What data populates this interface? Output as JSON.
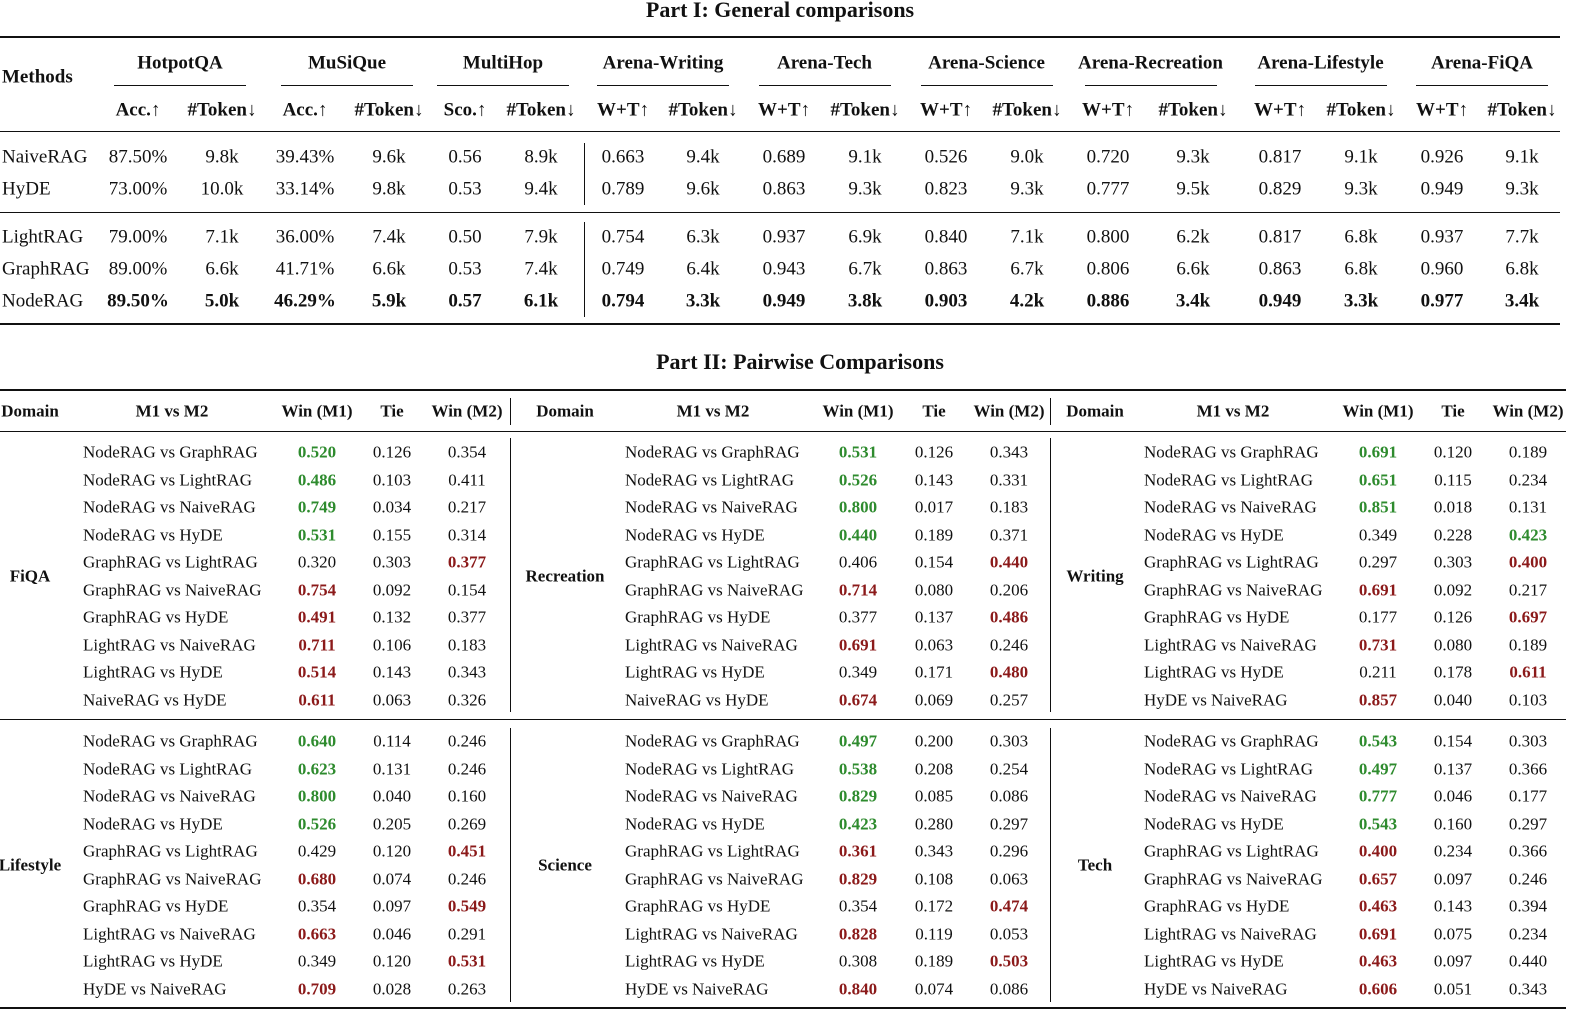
{
  "part1": {
    "title": "Part I: General comparisons",
    "methods_header": "Methods",
    "groups": [
      "HotpotQA",
      "MuSiQue",
      "MultiHop",
      "Arena-Writing",
      "Arena-Tech",
      "Arena-Science",
      "Arena-Recreation",
      "Arena-Lifestyle",
      "Arena-FiQA"
    ],
    "subheaders": [
      "Acc.↑",
      "#Token↓",
      "Acc.↑",
      "#Token↓",
      "Sco.↑",
      "#Token↓",
      "W+T↑",
      "#Token↓",
      "W+T↑",
      "#Token↓",
      "W+T↑",
      "#Token↓",
      "W+T↑",
      "#Token↓",
      "W+T↑",
      "#Token↓",
      "W+T↑",
      "#Token↓"
    ],
    "row_groups": [
      [
        {
          "method": "NaiveRAG",
          "values": [
            "87.50%",
            "9.8k",
            "39.43%",
            "9.6k",
            "0.56",
            "8.9k",
            "0.663",
            "9.4k",
            "0.689",
            "9.1k",
            "0.526",
            "9.0k",
            "0.720",
            "9.3k",
            "0.817",
            "9.1k",
            "0.926",
            "9.1k"
          ]
        },
        {
          "method": "HyDE",
          "values": [
            "73.00%",
            "10.0k",
            "33.14%",
            "9.8k",
            "0.53",
            "9.4k",
            "0.789",
            "9.6k",
            "0.863",
            "9.3k",
            "0.823",
            "9.3k",
            "0.777",
            "9.5k",
            "0.829",
            "9.3k",
            "0.949",
            "9.3k"
          ]
        }
      ],
      [
        {
          "method": "LightRAG",
          "values": [
            "79.00%",
            "7.1k",
            "36.00%",
            "7.4k",
            "0.50",
            "7.9k",
            "0.754",
            "6.3k",
            "0.937",
            "6.9k",
            "0.840",
            "7.1k",
            "0.800",
            "6.2k",
            "0.817",
            "6.8k",
            "0.937",
            "7.7k"
          ]
        },
        {
          "method": "GraphRAG",
          "values": [
            "89.00%",
            "6.6k",
            "41.71%",
            "6.6k",
            "0.53",
            "7.4k",
            "0.749",
            "6.4k",
            "0.943",
            "6.7k",
            "0.863",
            "6.7k",
            "0.806",
            "6.6k",
            "0.863",
            "6.8k",
            "0.960",
            "6.8k"
          ]
        },
        {
          "method": "NodeRAG",
          "values": [
            "89.50%",
            "5.0k",
            "46.29%",
            "5.9k",
            "0.57",
            "6.1k",
            "0.794",
            "3.3k",
            "0.949",
            "3.8k",
            "0.903",
            "4.2k",
            "0.886",
            "3.4k",
            "0.949",
            "3.3k",
            "0.977",
            "3.4k"
          ],
          "bold": true
        }
      ]
    ]
  },
  "part2": {
    "title": "Part II: Pairwise Comparisons",
    "headers": [
      "Domain",
      "M1 vs M2",
      "Win (M1)",
      "Tie",
      "Win (M2)"
    ],
    "sections": [
      [
        {
          "domain": "FiQA",
          "rows": [
            {
              "pair": "NodeRAG vs GraphRAG",
              "cells": [
                "0.520",
                "0.126",
                "0.354"
              ],
              "bold": 0,
              "color": "#2e8b2e"
            },
            {
              "pair": "NodeRAG vs LightRAG",
              "cells": [
                "0.486",
                "0.103",
                "0.411"
              ],
              "bold": 0,
              "color": "#2e8b2e"
            },
            {
              "pair": "NodeRAG vs NaiveRAG",
              "cells": [
                "0.749",
                "0.034",
                "0.217"
              ],
              "bold": 0,
              "color": "#2e8b2e"
            },
            {
              "pair": "NodeRAG vs HyDE",
              "cells": [
                "0.531",
                "0.155",
                "0.314"
              ],
              "bold": 0,
              "color": "#2e8b2e"
            },
            {
              "pair": "GraphRAG vs LightRAG",
              "cells": [
                "0.320",
                "0.303",
                "0.377"
              ],
              "bold": 2,
              "color": "#8b1a1a"
            },
            {
              "pair": "GraphRAG vs NaiveRAG",
              "cells": [
                "0.754",
                "0.092",
                "0.154"
              ],
              "bold": 0,
              "color": "#8b1a1a"
            },
            {
              "pair": "GraphRAG vs HyDE",
              "cells": [
                "0.491",
                "0.132",
                "0.377"
              ],
              "bold": 0,
              "color": "#8b1a1a"
            },
            {
              "pair": "LightRAG vs NaiveRAG",
              "cells": [
                "0.711",
                "0.106",
                "0.183"
              ],
              "bold": 0,
              "color": "#8b1a1a"
            },
            {
              "pair": "LightRAG vs HyDE",
              "cells": [
                "0.514",
                "0.143",
                "0.343"
              ],
              "bold": 0,
              "color": "#8b1a1a"
            },
            {
              "pair": "NaiveRAG vs HyDE",
              "cells": [
                "0.611",
                "0.063",
                "0.326"
              ],
              "bold": 0,
              "color": "#8b1a1a"
            }
          ]
        },
        {
          "domain": "Recreation",
          "rows": [
            {
              "pair": "NodeRAG vs GraphRAG",
              "cells": [
                "0.531",
                "0.126",
                "0.343"
              ],
              "bold": 0,
              "color": "#2e8b2e"
            },
            {
              "pair": "NodeRAG vs LightRAG",
              "cells": [
                "0.526",
                "0.143",
                "0.331"
              ],
              "bold": 0,
              "color": "#2e8b2e"
            },
            {
              "pair": "NodeRAG vs NaiveRAG",
              "cells": [
                "0.800",
                "0.017",
                "0.183"
              ],
              "bold": 0,
              "color": "#2e8b2e"
            },
            {
              "pair": "NodeRAG vs HyDE",
              "cells": [
                "0.440",
                "0.189",
                "0.371"
              ],
              "bold": 0,
              "color": "#2e8b2e"
            },
            {
              "pair": "GraphRAG vs LightRAG",
              "cells": [
                "0.406",
                "0.154",
                "0.440"
              ],
              "bold": 2,
              "color": "#8b1a1a"
            },
            {
              "pair": "GraphRAG vs NaiveRAG",
              "cells": [
                "0.714",
                "0.080",
                "0.206"
              ],
              "bold": 0,
              "color": "#8b1a1a"
            },
            {
              "pair": "GraphRAG vs HyDE",
              "cells": [
                "0.377",
                "0.137",
                "0.486"
              ],
              "bold": 2,
              "color": "#8b1a1a"
            },
            {
              "pair": "LightRAG vs NaiveRAG",
              "cells": [
                "0.691",
                "0.063",
                "0.246"
              ],
              "bold": 0,
              "color": "#8b1a1a"
            },
            {
              "pair": "LightRAG vs HyDE",
              "cells": [
                "0.349",
                "0.171",
                "0.480"
              ],
              "bold": 2,
              "color": "#8b1a1a"
            },
            {
              "pair": "NaiveRAG vs HyDE",
              "cells": [
                "0.674",
                "0.069",
                "0.257"
              ],
              "bold": 0,
              "color": "#8b1a1a"
            }
          ]
        },
        {
          "domain": "Writing",
          "rows": [
            {
              "pair": "NodeRAG vs GraphRAG",
              "cells": [
                "0.691",
                "0.120",
                "0.189"
              ],
              "bold": 0,
              "color": "#2e8b2e"
            },
            {
              "pair": "NodeRAG vs LightRAG",
              "cells": [
                "0.651",
                "0.115",
                "0.234"
              ],
              "bold": 0,
              "color": "#2e8b2e"
            },
            {
              "pair": "NodeRAG vs NaiveRAG",
              "cells": [
                "0.851",
                "0.018",
                "0.131"
              ],
              "bold": 0,
              "color": "#2e8b2e"
            },
            {
              "pair": "NodeRAG vs HyDE",
              "cells": [
                "0.349",
                "0.228",
                "0.423"
              ],
              "bold": 2,
              "color": "#2e8b2e"
            },
            {
              "pair": "GraphRAG vs LightRAG",
              "cells": [
                "0.297",
                "0.303",
                "0.400"
              ],
              "bold": 2,
              "color": "#8b1a1a"
            },
            {
              "pair": "GraphRAG vs NaiveRAG",
              "cells": [
                "0.691",
                "0.092",
                "0.217"
              ],
              "bold": 0,
              "color": "#8b1a1a"
            },
            {
              "pair": "GraphRAG vs HyDE",
              "cells": [
                "0.177",
                "0.126",
                "0.697"
              ],
              "bold": 2,
              "color": "#8b1a1a"
            },
            {
              "pair": "LightRAG vs NaiveRAG",
              "cells": [
                "0.731",
                "0.080",
                "0.189"
              ],
              "bold": 0,
              "color": "#8b1a1a"
            },
            {
              "pair": "LightRAG vs HyDE",
              "cells": [
                "0.211",
                "0.178",
                "0.611"
              ],
              "bold": 2,
              "color": "#8b1a1a"
            },
            {
              "pair": "HyDE vs NaiveRAG",
              "cells": [
                "0.857",
                "0.040",
                "0.103"
              ],
              "bold": 0,
              "color": "#8b1a1a"
            }
          ]
        }
      ],
      [
        {
          "domain": "Lifestyle",
          "rows": [
            {
              "pair": "NodeRAG vs GraphRAG",
              "cells": [
                "0.640",
                "0.114",
                "0.246"
              ],
              "bold": 0,
              "color": "#2e8b2e"
            },
            {
              "pair": "NodeRAG vs LightRAG",
              "cells": [
                "0.623",
                "0.131",
                "0.246"
              ],
              "bold": 0,
              "color": "#2e8b2e"
            },
            {
              "pair": "NodeRAG vs NaiveRAG",
              "cells": [
                "0.800",
                "0.040",
                "0.160"
              ],
              "bold": 0,
              "color": "#2e8b2e"
            },
            {
              "pair": "NodeRAG vs HyDE",
              "cells": [
                "0.526",
                "0.205",
                "0.269"
              ],
              "bold": 0,
              "color": "#2e8b2e"
            },
            {
              "pair": "GraphRAG vs LightRAG",
              "cells": [
                "0.429",
                "0.120",
                "0.451"
              ],
              "bold": 2,
              "color": "#8b1a1a"
            },
            {
              "pair": "GraphRAG vs NaiveRAG",
              "cells": [
                "0.680",
                "0.074",
                "0.246"
              ],
              "bold": 0,
              "color": "#8b1a1a"
            },
            {
              "pair": "GraphRAG vs HyDE",
              "cells": [
                "0.354",
                "0.097",
                "0.549"
              ],
              "bold": 2,
              "color": "#8b1a1a"
            },
            {
              "pair": "LightRAG vs NaiveRAG",
              "cells": [
                "0.663",
                "0.046",
                "0.291"
              ],
              "bold": 0,
              "color": "#8b1a1a"
            },
            {
              "pair": "LightRAG vs HyDE",
              "cells": [
                "0.349",
                "0.120",
                "0.531"
              ],
              "bold": 2,
              "color": "#8b1a1a"
            },
            {
              "pair": "HyDE vs NaiveRAG",
              "cells": [
                "0.709",
                "0.028",
                "0.263"
              ],
              "bold": 0,
              "color": "#8b1a1a"
            }
          ]
        },
        {
          "domain": "Science",
          "rows": [
            {
              "pair": "NodeRAG vs GraphRAG",
              "cells": [
                "0.497",
                "0.200",
                "0.303"
              ],
              "bold": 0,
              "color": "#2e8b2e"
            },
            {
              "pair": "NodeRAG vs LightRAG",
              "cells": [
                "0.538",
                "0.208",
                "0.254"
              ],
              "bold": 0,
              "color": "#2e8b2e"
            },
            {
              "pair": "NodeRAG vs NaiveRAG",
              "cells": [
                "0.829",
                "0.085",
                "0.086"
              ],
              "bold": 0,
              "color": "#2e8b2e"
            },
            {
              "pair": "NodeRAG vs HyDE",
              "cells": [
                "0.423",
                "0.280",
                "0.297"
              ],
              "bold": 0,
              "color": "#2e8b2e"
            },
            {
              "pair": "GraphRAG vs LightRAG",
              "cells": [
                "0.361",
                "0.343",
                "0.296"
              ],
              "bold": 0,
              "color": "#8b1a1a"
            },
            {
              "pair": "GraphRAG vs NaiveRAG",
              "cells": [
                "0.829",
                "0.108",
                "0.063"
              ],
              "bold": 0,
              "color": "#8b1a1a"
            },
            {
              "pair": "GraphRAG vs HyDE",
              "cells": [
                "0.354",
                "0.172",
                "0.474"
              ],
              "bold": 2,
              "color": "#8b1a1a"
            },
            {
              "pair": "LightRAG vs NaiveRAG",
              "cells": [
                "0.828",
                "0.119",
                "0.053"
              ],
              "bold": 0,
              "color": "#8b1a1a"
            },
            {
              "pair": "LightRAG vs HyDE",
              "cells": [
                "0.308",
                "0.189",
                "0.503"
              ],
              "bold": 2,
              "color": "#8b1a1a"
            },
            {
              "pair": "HyDE vs NaiveRAG",
              "cells": [
                "0.840",
                "0.074",
                "0.086"
              ],
              "bold": 0,
              "color": "#8b1a1a"
            }
          ]
        },
        {
          "domain": "Tech",
          "rows": [
            {
              "pair": "NodeRAG vs GraphRAG",
              "cells": [
                "0.543",
                "0.154",
                "0.303"
              ],
              "bold": 0,
              "color": "#2e8b2e"
            },
            {
              "pair": "NodeRAG vs LightRAG",
              "cells": [
                "0.497",
                "0.137",
                "0.366"
              ],
              "bold": 0,
              "color": "#2e8b2e"
            },
            {
              "pair": "NodeRAG vs NaiveRAG",
              "cells": [
                "0.777",
                "0.046",
                "0.177"
              ],
              "bold": 0,
              "color": "#2e8b2e"
            },
            {
              "pair": "NodeRAG vs HyDE",
              "cells": [
                "0.543",
                "0.160",
                "0.297"
              ],
              "bold": 0,
              "color": "#2e8b2e"
            },
            {
              "pair": "GraphRAG vs LightRAG",
              "cells": [
                "0.400",
                "0.234",
                "0.366"
              ],
              "bold": 0,
              "color": "#8b1a1a"
            },
            {
              "pair": "GraphRAG vs NaiveRAG",
              "cells": [
                "0.657",
                "0.097",
                "0.246"
              ],
              "bold": 0,
              "color": "#8b1a1a"
            },
            {
              "pair": "GraphRAG vs HyDE",
              "cells": [
                "0.463",
                "0.143",
                "0.394"
              ],
              "bold": 0,
              "color": "#8b1a1a"
            },
            {
              "pair": "LightRAG vs NaiveRAG",
              "cells": [
                "0.691",
                "0.075",
                "0.234"
              ],
              "bold": 0,
              "color": "#8b1a1a"
            },
            {
              "pair": "LightRAG vs HyDE",
              "cells": [
                "0.463",
                "0.097",
                "0.440"
              ],
              "bold": 0,
              "color": "#8b1a1a"
            },
            {
              "pair": "HyDE vs NaiveRAG",
              "cells": [
                "0.606",
                "0.051",
                "0.343"
              ],
              "bold": 0,
              "color": "#8b1a1a"
            }
          ]
        }
      ]
    ]
  }
}
